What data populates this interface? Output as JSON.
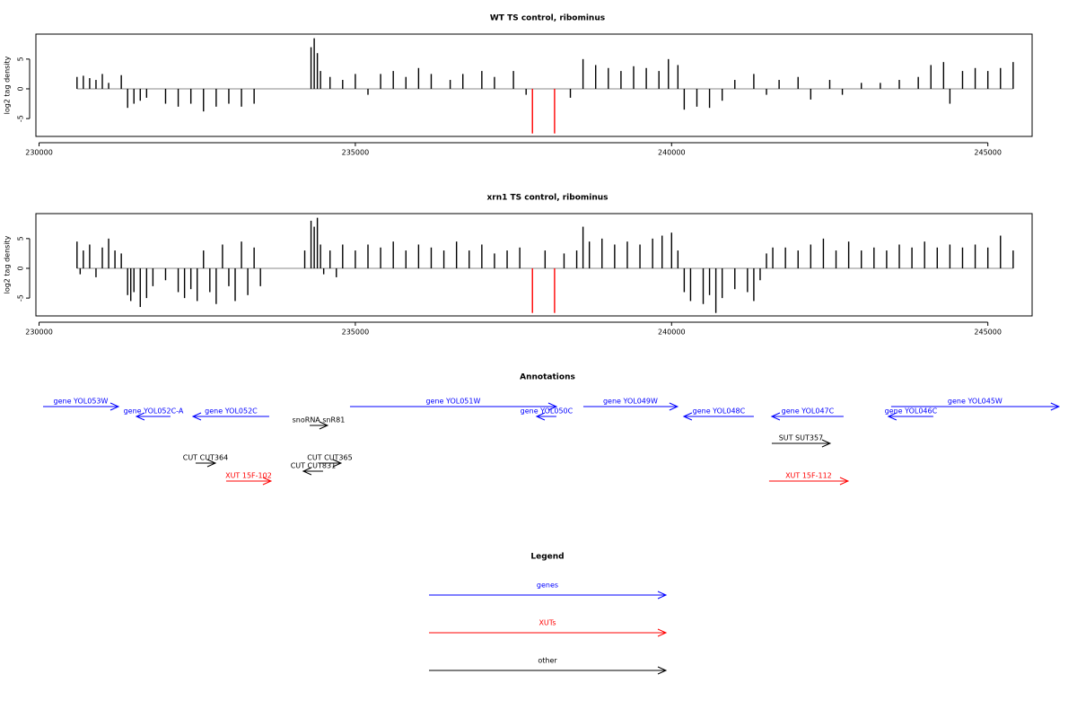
{
  "chart_data": [
    {
      "type": "bar",
      "title": "WT TS control, ribominus",
      "ylabel": "log2 tag density",
      "xlim": [
        229950,
        245700
      ],
      "ylim": [
        -8,
        9.2
      ],
      "xticks": [
        230000,
        235000,
        240000,
        245000
      ],
      "yticks": [
        -5,
        0,
        5
      ],
      "series": [
        {
          "color": "#000000",
          "x": [
            230600,
            230700,
            230800,
            230900,
            231000,
            231100,
            231300,
            231400,
            231500,
            231600,
            231700,
            232000,
            232200,
            232400,
            232600,
            232800,
            233000,
            233200,
            233400,
            234300,
            234350,
            234400,
            234450,
            234600,
            234800,
            235000,
            235200,
            235400,
            235600,
            235800,
            236000,
            236200,
            236500,
            236700,
            237000,
            237200,
            237500,
            237700,
            238400,
            238600,
            238800,
            239000,
            239200,
            239400,
            239600,
            239800,
            239950,
            240100,
            240200,
            240400,
            240600,
            240800,
            241000,
            241300,
            241500,
            241700,
            242000,
            242200,
            242500,
            242700,
            243000,
            243300,
            243600,
            243900,
            244100,
            244300,
            244400,
            244600,
            244800,
            245000,
            245200,
            245400
          ],
          "values": [
            2,
            2.2,
            1.8,
            1.5,
            2.5,
            1,
            2.3,
            -3.2,
            -2.5,
            -2,
            -1.5,
            -2.5,
            -3,
            -2.5,
            -3.8,
            -3,
            -2.5,
            -3,
            -2.5,
            7,
            8.5,
            6,
            3,
            2,
            1.5,
            2.5,
            -1,
            2.5,
            3,
            2,
            3.5,
            2.5,
            1.5,
            2.5,
            3,
            2,
            3,
            -1,
            -1.5,
            5,
            4,
            3.5,
            3,
            3.8,
            3.5,
            3,
            5,
            4,
            -3.5,
            -3,
            -3.2,
            -2,
            1.5,
            2.5,
            -1,
            1.5,
            2,
            -1.8,
            1.5,
            -1,
            1,
            1,
            1.5,
            2,
            4,
            4.5,
            -2.5,
            3,
            3.5,
            3,
            3.5,
            4.5
          ]
        },
        {
          "color": "#ff0000",
          "x": [
            237800,
            238150
          ],
          "values": [
            -7.5,
            -7.5
          ]
        }
      ]
    },
    {
      "type": "bar",
      "title": "xrn1 TS control, ribominus",
      "ylabel": "log2 tag density",
      "xlim": [
        229950,
        245700
      ],
      "ylim": [
        -8,
        9.2
      ],
      "xticks": [
        230000,
        235000,
        240000,
        245000
      ],
      "yticks": [
        -5,
        0,
        5
      ],
      "series": [
        {
          "color": "#000000",
          "x": [
            230600,
            230650,
            230700,
            230800,
            230900,
            231000,
            231100,
            231200,
            231300,
            231400,
            231450,
            231500,
            231600,
            231700,
            231800,
            232000,
            232200,
            232300,
            232400,
            232500,
            232600,
            232700,
            232800,
            232900,
            233000,
            233100,
            233200,
            233300,
            233400,
            233500,
            234200,
            234300,
            234350,
            234400,
            234450,
            234500,
            234600,
            234700,
            234800,
            235000,
            235200,
            235400,
            235600,
            235800,
            236000,
            236200,
            236400,
            236600,
            236800,
            237000,
            237200,
            237400,
            237600,
            238000,
            238300,
            238500,
            238600,
            238700,
            238900,
            239100,
            239300,
            239500,
            239700,
            239850,
            240000,
            240100,
            240200,
            240300,
            240500,
            240600,
            240700,
            240800,
            241000,
            241200,
            241300,
            241400,
            241500,
            241600,
            241800,
            242000,
            242200,
            242400,
            242600,
            242800,
            243000,
            243200,
            243400,
            243600,
            243800,
            244000,
            244200,
            244400,
            244600,
            244800,
            245000,
            245200,
            245400
          ],
          "values": [
            4.5,
            -1,
            3,
            4,
            -1.5,
            3.5,
            5,
            3,
            2.5,
            -4.5,
            -5.5,
            -4,
            -6.5,
            -5,
            -3,
            -2,
            -4,
            -5,
            -3.5,
            -5.5,
            3,
            -4,
            -6,
            4,
            -3,
            -5.5,
            4.5,
            -4.5,
            3.5,
            -3,
            3,
            8,
            7,
            8.5,
            4,
            -1,
            3,
            -1.5,
            4,
            3,
            4,
            3.5,
            4.5,
            3,
            4,
            3.5,
            3,
            4.5,
            3,
            4,
            2.5,
            3,
            3.5,
            3,
            2.5,
            3,
            7,
            4.5,
            5,
            4,
            4.5,
            4,
            5,
            5.5,
            6,
            3,
            -4,
            -5.5,
            -6,
            -4.5,
            -7.5,
            -5,
            -3.5,
            -4,
            -5.5,
            -2,
            2.5,
            3.5,
            3.5,
            3,
            4,
            5,
            3,
            4.5,
            3,
            3.5,
            3,
            4,
            3.5,
            4.5,
            3.5,
            4,
            3.5,
            4,
            3.5,
            5.5,
            3
          ]
        },
        {
          "color": "#ff0000",
          "x": [
            237800,
            238150
          ],
          "values": [
            -7.5,
            -7.5
          ]
        }
      ]
    }
  ],
  "annotations": {
    "title": "Annotations",
    "xlim": [
      229390,
      246420
    ],
    "features": [
      {
        "label": "gene YOL053W",
        "color": "#0000ff",
        "from": 230071,
        "to": 231263
      },
      {
        "label": "gene YOL052C-A",
        "color": "#0000ff",
        "from": 232086,
        "to": 231547
      },
      {
        "label": "gene YOL052C",
        "color": "#0000ff",
        "from": 233647,
        "to": 232441
      },
      {
        "label": "gene YOL051W",
        "color": "#0000ff",
        "from": 234924,
        "to": 238188
      },
      {
        "label": "gene YOL050C",
        "color": "#0000ff",
        "from": 238188,
        "to": 237876
      },
      {
        "label": "gene YOL049W",
        "color": "#0000ff",
        "from": 238614,
        "to": 240103
      },
      {
        "label": "gene YOL048C",
        "color": "#0000ff",
        "from": 241310,
        "to": 240203
      },
      {
        "label": "gene YOL047C",
        "color": "#0000ff",
        "from": 242729,
        "to": 241594
      },
      {
        "label": "gene YOL046C",
        "color": "#0000ff",
        "from": 244148,
        "to": 243438
      },
      {
        "label": "gene YOL045W",
        "color": "#0000ff",
        "from": 243481,
        "to": 246134
      },
      {
        "label": "snoRNA snR81",
        "color": "#000000",
        "from": 234286,
        "to": 234569
      },
      {
        "label": "SUT SUT357",
        "color": "#000000",
        "from": 241594,
        "to": 242516
      },
      {
        "label": "CUT CUT364",
        "color": "#000000",
        "from": 232483,
        "to": 232796
      },
      {
        "label": "CUT CUT365",
        "color": "#000000",
        "from": 234428,
        "to": 234782
      },
      {
        "label": "CUT CUT831",
        "color": "#000000",
        "from": 234498,
        "to": 234186
      },
      {
        "label": "XUT 15F-102",
        "color": "#ff0000",
        "from": 232966,
        "to": 233675
      },
      {
        "label": "XUT 15F-112",
        "color": "#ff0000",
        "from": 241551,
        "to": 242800
      }
    ]
  },
  "legend": {
    "title": "Legend",
    "entries": [
      {
        "name": "genes",
        "color": "#0000ff"
      },
      {
        "name": "XUTs",
        "color": "#ff0000"
      },
      {
        "name": "other",
        "color": "#000000"
      }
    ]
  }
}
